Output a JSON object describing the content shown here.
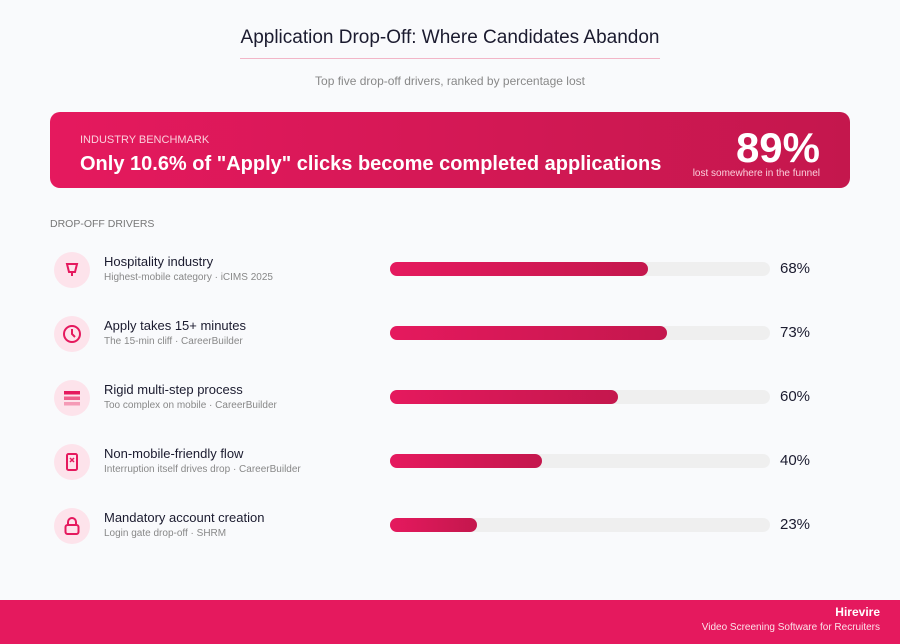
{
  "header": {
    "title": "Application Drop-Off: Where Candidates Abandon",
    "subtitle": "Top five drop-off drivers, ranked by percentage lost"
  },
  "banner": {
    "label": "INDUSTRY BENCHMARK",
    "text": "Only 10.6% of \"Apply\" clicks become completed applications",
    "big": "89%",
    "small": "lost somewhere in the funnel"
  },
  "section_label": "DROP-OFF DRIVERS",
  "colors": {
    "accent": "#e5195e",
    "accent_dark": "#c4174d",
    "icon_bg": "#fde3eb",
    "track": "#efefef"
  },
  "chart_data": {
    "type": "bar",
    "orientation": "horizontal",
    "xlim": [
      0,
      100
    ],
    "categories": [
      "Hospitality industry",
      "Apply takes 15+ minutes",
      "Rigid multi-step process",
      "Non-mobile-friendly flow",
      "Mandatory account creation"
    ],
    "values": [
      68,
      73,
      60,
      40,
      23
    ]
  },
  "rows": [
    {
      "name": "Hospitality industry",
      "source": "Highest-mobile category · iCIMS 2025",
      "value": 68,
      "label": "68%",
      "icon": "glass-icon"
    },
    {
      "name": "Apply takes 15+ minutes",
      "source": "The 15-min cliff · CareerBuilder",
      "value": 73,
      "label": "73%",
      "icon": "clock-icon"
    },
    {
      "name": "Rigid multi-step process",
      "source": "Too complex on mobile · CareerBuilder",
      "value": 60,
      "label": "60%",
      "icon": "layers-icon"
    },
    {
      "name": "Non-mobile-friendly flow",
      "source": "Interruption itself drives drop · CareerBuilder",
      "value": 40,
      "label": "40%",
      "icon": "phone-x-icon"
    },
    {
      "name": "Mandatory account creation",
      "source": "Login gate drop-off · SHRM",
      "value": 23,
      "label": "23%",
      "icon": "lock-icon"
    }
  ],
  "footer": {
    "brand": "Hirevire",
    "tagline": "Video Screening Software for Recruiters"
  }
}
